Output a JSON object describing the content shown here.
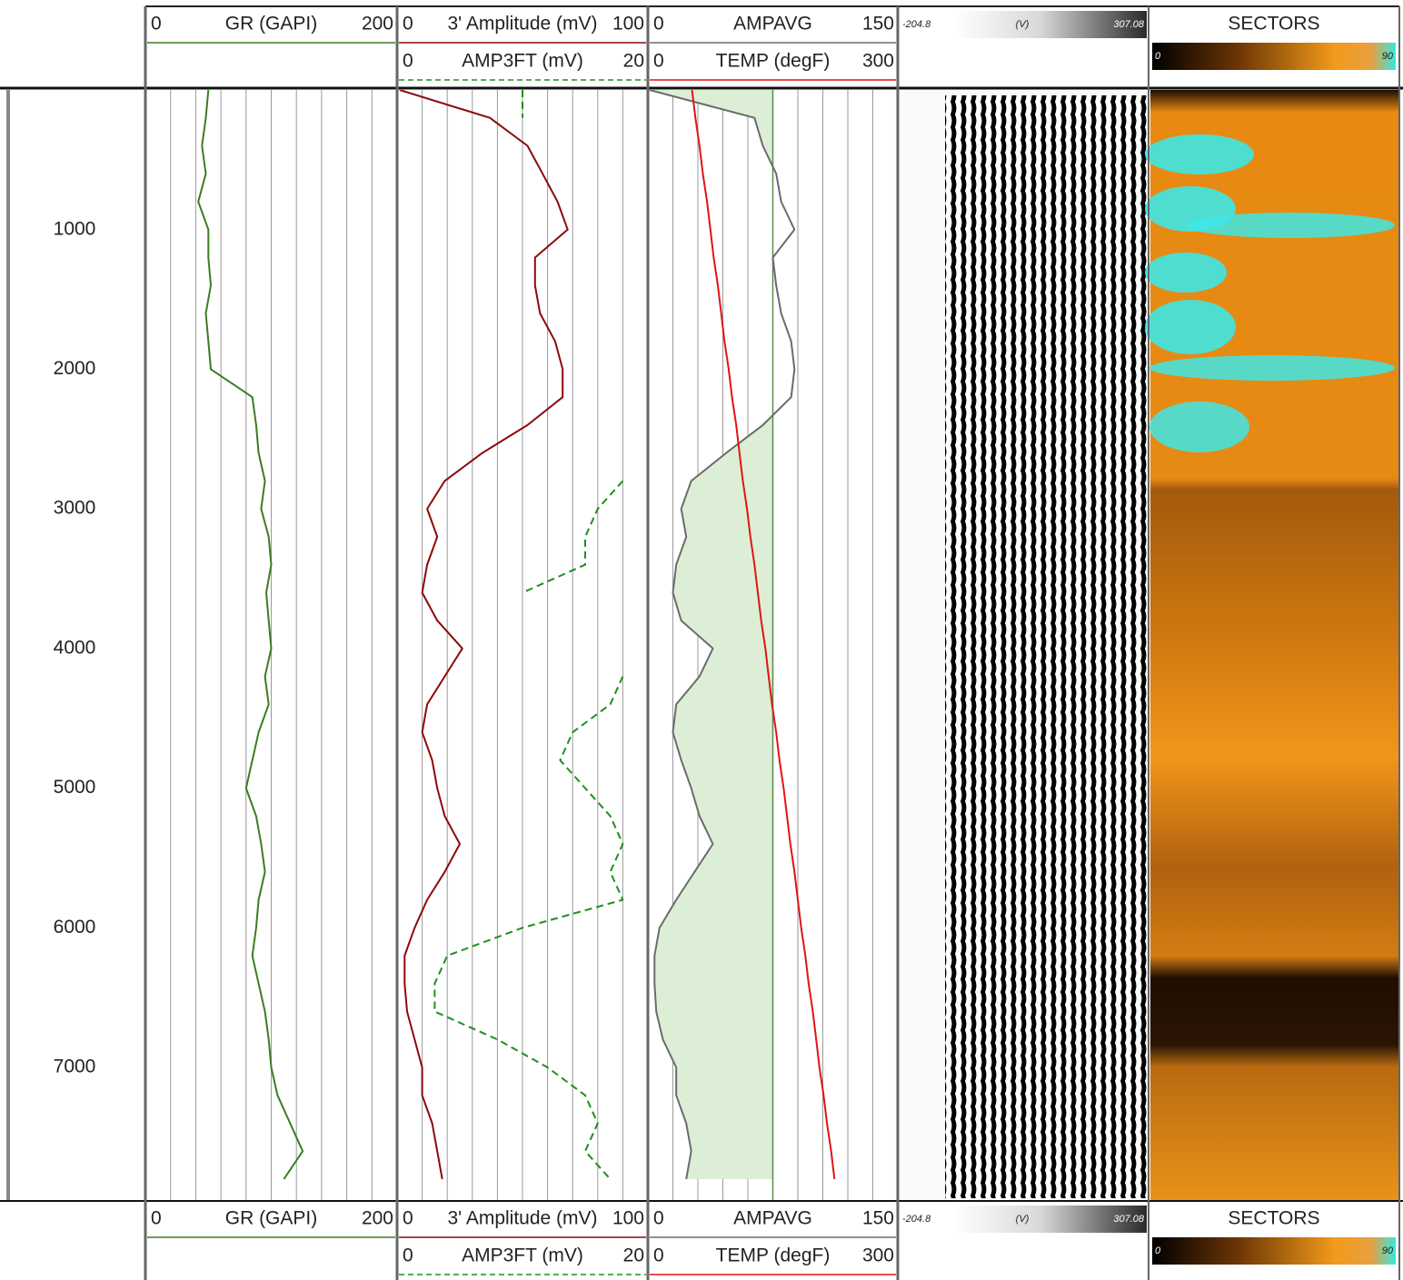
{
  "chart_data": {
    "type": "well_log",
    "depth": [
      0,
      200,
      400,
      600,
      800,
      1000,
      1200,
      1400,
      1600,
      1800,
      2000,
      2200,
      2400,
      2600,
      2800,
      3000,
      3200,
      3400,
      3600,
      3800,
      4000,
      4200,
      4400,
      4600,
      4800,
      5000,
      5200,
      5400,
      5600,
      5800,
      6000,
      6200,
      6400,
      6600,
      6800,
      7000,
      7200,
      7400,
      7600,
      7800
    ],
    "ylim": [
      0,
      7950
    ],
    "yticks": [
      1000,
      2000,
      3000,
      4000,
      5000,
      6000,
      7000
    ],
    "tracks": [
      {
        "grid_divisions": 10,
        "curves": [
          {
            "name": "GR (GAPI)",
            "color": "#3a7d23",
            "xlim": [
              0,
              200
            ],
            "values": [
              50,
              48,
              45,
              48,
              42,
              50,
              50,
              52,
              48,
              50,
              52,
              85,
              88,
              90,
              95,
              92,
              98,
              100,
              96,
              98,
              100,
              95,
              98,
              90,
              85,
              80,
              88,
              92,
              95,
              90,
              88,
              85,
              90,
              95,
              98,
              100,
              105,
              115,
              125,
              110
            ]
          }
        ]
      },
      {
        "grid_divisions": 10,
        "curves": [
          {
            "name": "3' Amplitude (mV)",
            "color": "#8b0a0a",
            "xlim": [
              0,
              100
            ],
            "values": [
              1,
              37,
              52,
              58,
              64,
              68,
              55,
              55,
              57,
              63,
              66,
              66,
              52,
              34,
              19,
              12,
              16,
              12,
              10,
              16,
              26,
              19,
              12,
              10,
              14,
              16,
              19,
              25,
              19,
              12,
              7,
              3,
              3,
              4,
              7,
              10,
              10,
              14,
              16,
              18
            ]
          },
          {
            "name": "AMP3FT (mV)",
            "color": "#1f8f1f",
            "xlim": [
              0,
              20
            ],
            "dashed": true,
            "values": [
              10,
              10,
              null,
              null,
              null,
              null,
              null,
              null,
              null,
              null,
              null,
              null,
              null,
              null,
              18,
              16,
              15,
              15,
              10,
              null,
              null,
              18,
              17,
              14,
              13,
              15,
              17,
              18,
              17,
              18,
              10,
              4,
              3,
              3,
              8,
              12,
              15,
              16,
              15,
              17
            ]
          }
        ]
      },
      {
        "grid_divisions": 10,
        "curves": [
          {
            "name": "AMPAVG",
            "color": "#6b6b6b",
            "xlim": [
              0,
              150
            ],
            "shade_to": 75,
            "shade_color": "#dcefd6",
            "values": [
              1,
              64,
              69,
              77,
              80,
              88,
              75,
              77,
              80,
              86,
              88,
              86,
              69,
              47,
              26,
              20,
              23,
              17,
              15,
              20,
              39,
              31,
              17,
              15,
              20,
              26,
              31,
              39,
              28,
              17,
              7,
              4,
              4,
              5,
              9,
              17,
              17,
              23,
              26,
              23
            ]
          },
          {
            "name": "TEMP (degF)",
            "color": "#e01414",
            "xlim": [
              0,
              300
            ],
            "values": [
              53,
              57,
              62,
              66,
              71,
              75,
              79,
              84,
              88,
              92,
              97,
              101,
              106,
              110,
              114,
              119,
              123,
              128,
              132,
              136,
              141,
              145,
              149,
              154,
              158,
              163,
              167,
              171,
              176,
              180,
              184,
              189,
              193,
              198,
              202,
              206,
              211,
              215,
              220,
              224
            ]
          }
        ]
      }
    ],
    "vdl": {
      "unit": "(V)",
      "range": [
        -204.8,
        307.08
      ]
    },
    "sectors": {
      "title": "SECTORS",
      "range": [
        0,
        90
      ]
    }
  }
}
